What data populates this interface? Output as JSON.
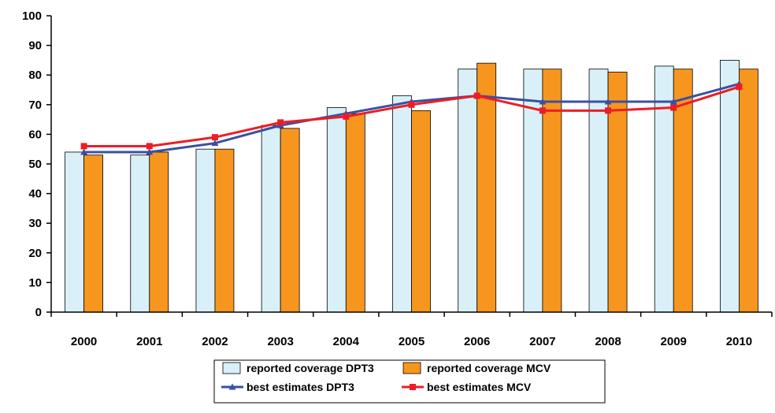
{
  "chart_data": {
    "type": "bar",
    "title": "",
    "xlabel": "",
    "ylabel": "",
    "ylim": [
      0,
      100
    ],
    "yticks": [
      0,
      10,
      20,
      30,
      40,
      50,
      60,
      70,
      80,
      90,
      100
    ],
    "grid": false,
    "legend_position": "bottom",
    "categories": [
      "2000",
      "2001",
      "2002",
      "2003",
      "2004",
      "2005",
      "2006",
      "2007",
      "2008",
      "2009",
      "2010"
    ],
    "bar_series": [
      {
        "name": "reported coverage DPT3",
        "color": "#d9f0f8",
        "values": [
          54,
          53,
          55,
          63,
          69,
          73,
          82,
          82,
          82,
          83,
          85
        ]
      },
      {
        "name": "reported coverage MCV",
        "color": "#f7961e",
        "values": [
          53,
          54,
          55,
          62,
          67,
          68,
          84,
          82,
          81,
          82,
          82
        ]
      }
    ],
    "line_series": [
      {
        "name": "best estimates DPT3",
        "color": "#3a50a0",
        "marker": "triangle",
        "values": [
          54,
          54,
          57,
          63,
          67,
          71,
          73,
          71,
          71,
          71,
          77
        ]
      },
      {
        "name": "best estimates MCV",
        "color": "#ee1c25",
        "marker": "square",
        "values": [
          56,
          56,
          59,
          64,
          66,
          70,
          73,
          68,
          68,
          69,
          76
        ]
      }
    ]
  }
}
